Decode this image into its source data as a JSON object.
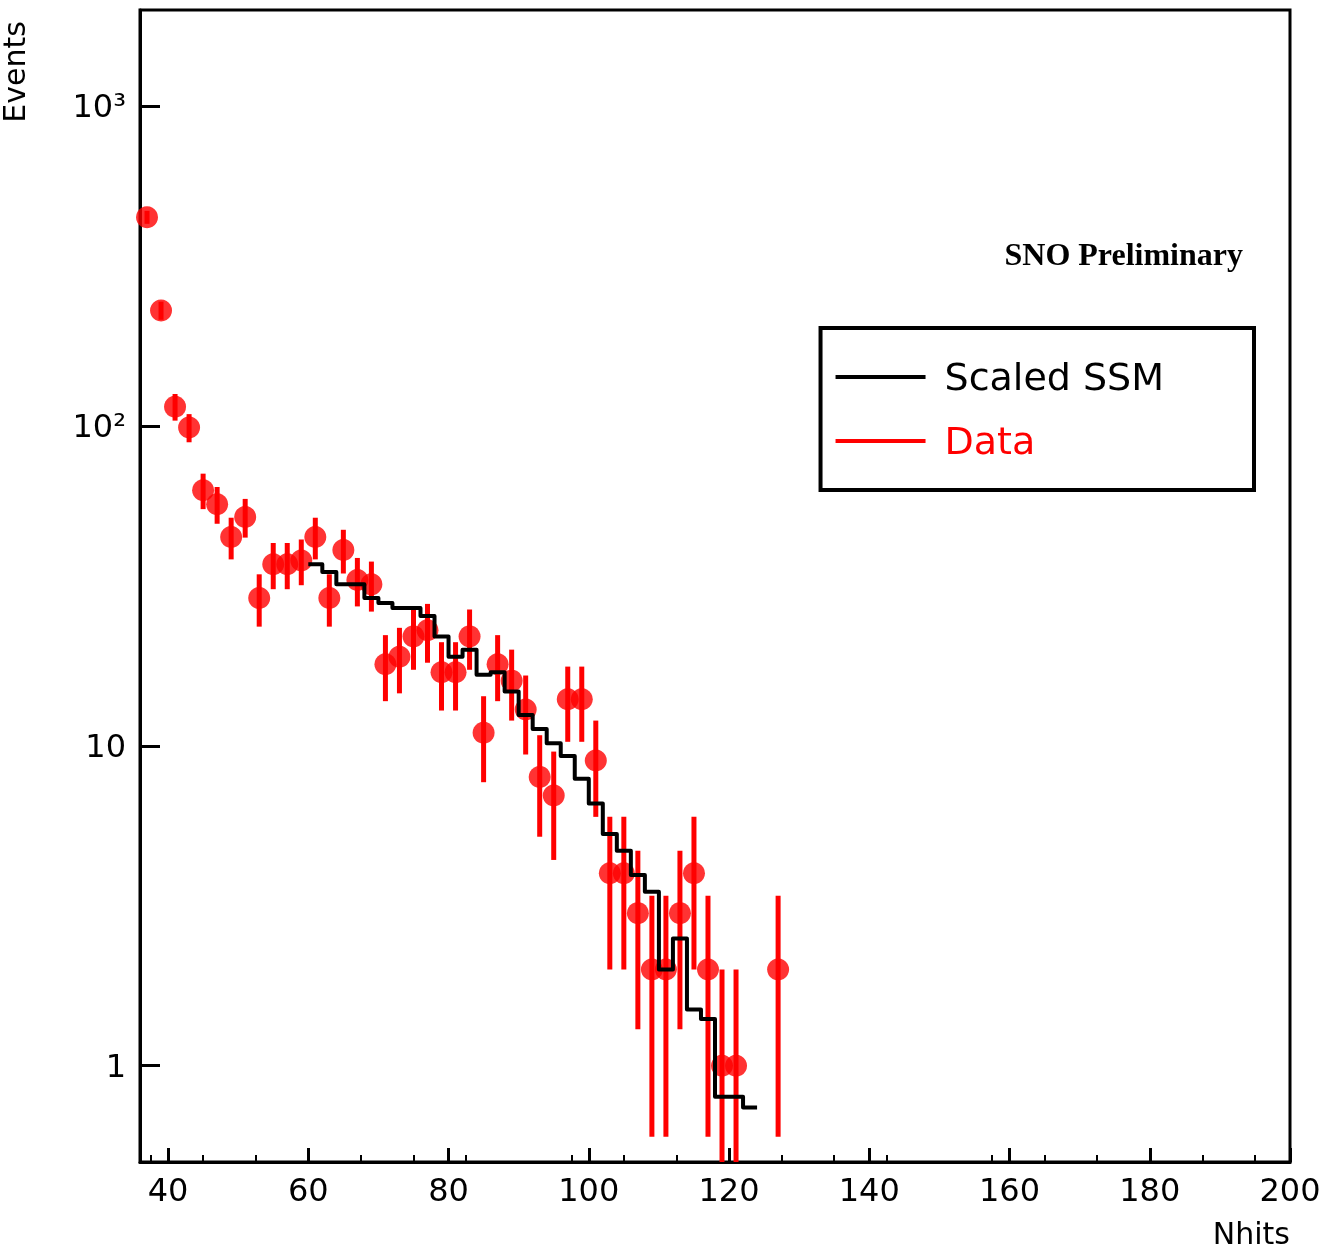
{
  "chart_data": {
    "type": "scatter",
    "xlabel": "Nhits",
    "ylabel": "Events",
    "annotations": [
      "SNO Preliminary"
    ],
    "xlim": [
      36,
      200
    ],
    "xticks": [
      40,
      60,
      80,
      100,
      120,
      140,
      160,
      180,
      200
    ],
    "ylim": [
      0.5,
      2000
    ],
    "yticks": [
      {
        "value": 1,
        "label": "1"
      },
      {
        "value": 10,
        "label": "10"
      },
      {
        "value": 100,
        "label": "10²"
      },
      {
        "value": 1000,
        "label": "10³"
      }
    ],
    "log": "y",
    "grid": false,
    "legend": "top right",
    "marker": "circle",
    "series": [
      {
        "name": "Scaled SSM",
        "type": "step",
        "marker": "none",
        "color": "#000000",
        "x": [
          60,
          62,
          64,
          66,
          68,
          70,
          72,
          74,
          76,
          78,
          80,
          82,
          84,
          86,
          88,
          90,
          92,
          94,
          96,
          98,
          100,
          102,
          104,
          106,
          108,
          110,
          112,
          114,
          116,
          118,
          120,
          122,
          124
        ],
        "values": [
          37,
          35,
          32,
          32,
          29,
          28,
          27,
          27,
          25.5,
          22,
          19,
          20,
          16.7,
          17,
          14.8,
          12.5,
          11.3,
          10.2,
          9.3,
          7.9,
          6.6,
          5.3,
          4.7,
          3.95,
          3.5,
          2.0,
          2.5,
          1.5,
          1.4,
          0.8,
          0.8,
          0.74,
          0.74
        ]
      },
      {
        "name": "Data",
        "type": "scatter",
        "color": "#ff0000",
        "x": [
          37,
          39,
          41,
          43,
          45,
          47,
          49,
          51,
          53,
          55,
          57,
          59,
          61,
          63,
          65,
          67,
          69,
          71,
          73,
          75,
          77,
          79,
          81,
          83,
          85,
          87,
          89,
          91,
          93,
          95,
          97,
          99,
          101,
          103,
          105,
          107,
          109,
          111,
          113,
          115,
          117,
          119,
          121,
          127
        ],
        "values": [
          450,
          230,
          115,
          99,
          63,
          57,
          45,
          52,
          29,
          37,
          37,
          38,
          45,
          29,
          41,
          33,
          32,
          18,
          19,
          22,
          23,
          17,
          17,
          22,
          11,
          18,
          16,
          13,
          8,
          7,
          14,
          14,
          9,
          4,
          4,
          3,
          2,
          2,
          3,
          4,
          2,
          1,
          1,
          2
        ],
        "errors": [
          21,
          15,
          11,
          10,
          8,
          7.5,
          6.7,
          7.2,
          5.4,
          6.1,
          6.1,
          6.2,
          6.7,
          5.4,
          6.4,
          5.7,
          5.7,
          4.2,
          4.4,
          4.7,
          4.8,
          4.1,
          4.1,
          4.7,
          3.3,
          4.2,
          4,
          3.6,
          2.8,
          2.6,
          3.7,
          3.7,
          3,
          2,
          2,
          1.7,
          1.4,
          1.4,
          1.7,
          2,
          1.4,
          [
            0.5,
            2
          ],
          [
            0.5,
            2
          ],
          1.4
        ]
      }
    ]
  }
}
